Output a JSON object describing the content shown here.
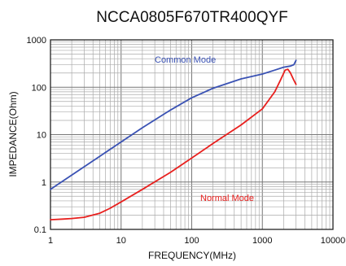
{
  "chart_data": {
    "type": "line",
    "title": "NCCA0805F670TR400QYF",
    "xlabel": "FREQUENCY(MHz)",
    "ylabel": "IMPEDANCE(Ohm)",
    "x_scale": "log",
    "y_scale": "log",
    "xlim": [
      1,
      10000
    ],
    "ylim": [
      0.1,
      1000
    ],
    "x_ticks": [
      "1",
      "10",
      "100",
      "1000",
      "10000"
    ],
    "y_ticks": [
      "1000",
      "100",
      "10",
      "1",
      "0.1"
    ],
    "grid": true,
    "series": [
      {
        "name": "Common Mode",
        "color": "#3a52b4",
        "label_position": "inline",
        "points": [
          [
            1,
            0.7
          ],
          [
            2,
            1.4
          ],
          [
            5,
            3.5
          ],
          [
            10,
            7
          ],
          [
            20,
            14
          ],
          [
            50,
            33
          ],
          [
            100,
            60
          ],
          [
            200,
            95
          ],
          [
            500,
            150
          ],
          [
            1000,
            190
          ],
          [
            1500,
            230
          ],
          [
            2000,
            265
          ],
          [
            2500,
            280
          ],
          [
            2800,
            300
          ],
          [
            3000,
            370
          ]
        ]
      },
      {
        "name": "Normal Mode",
        "color": "#e8201e",
        "label_position": "inline",
        "points": [
          [
            1,
            0.16
          ],
          [
            1.5,
            0.165
          ],
          [
            2,
            0.17
          ],
          [
            3,
            0.18
          ],
          [
            5,
            0.22
          ],
          [
            7,
            0.28
          ],
          [
            10,
            0.38
          ],
          [
            20,
            0.7
          ],
          [
            50,
            1.6
          ],
          [
            100,
            3.2
          ],
          [
            200,
            6.5
          ],
          [
            500,
            16
          ],
          [
            1000,
            35
          ],
          [
            1500,
            80
          ],
          [
            1800,
            140
          ],
          [
            2100,
            230
          ],
          [
            2300,
            240
          ],
          [
            2500,
            200
          ],
          [
            2800,
            140
          ],
          [
            3000,
            115
          ]
        ]
      }
    ]
  }
}
